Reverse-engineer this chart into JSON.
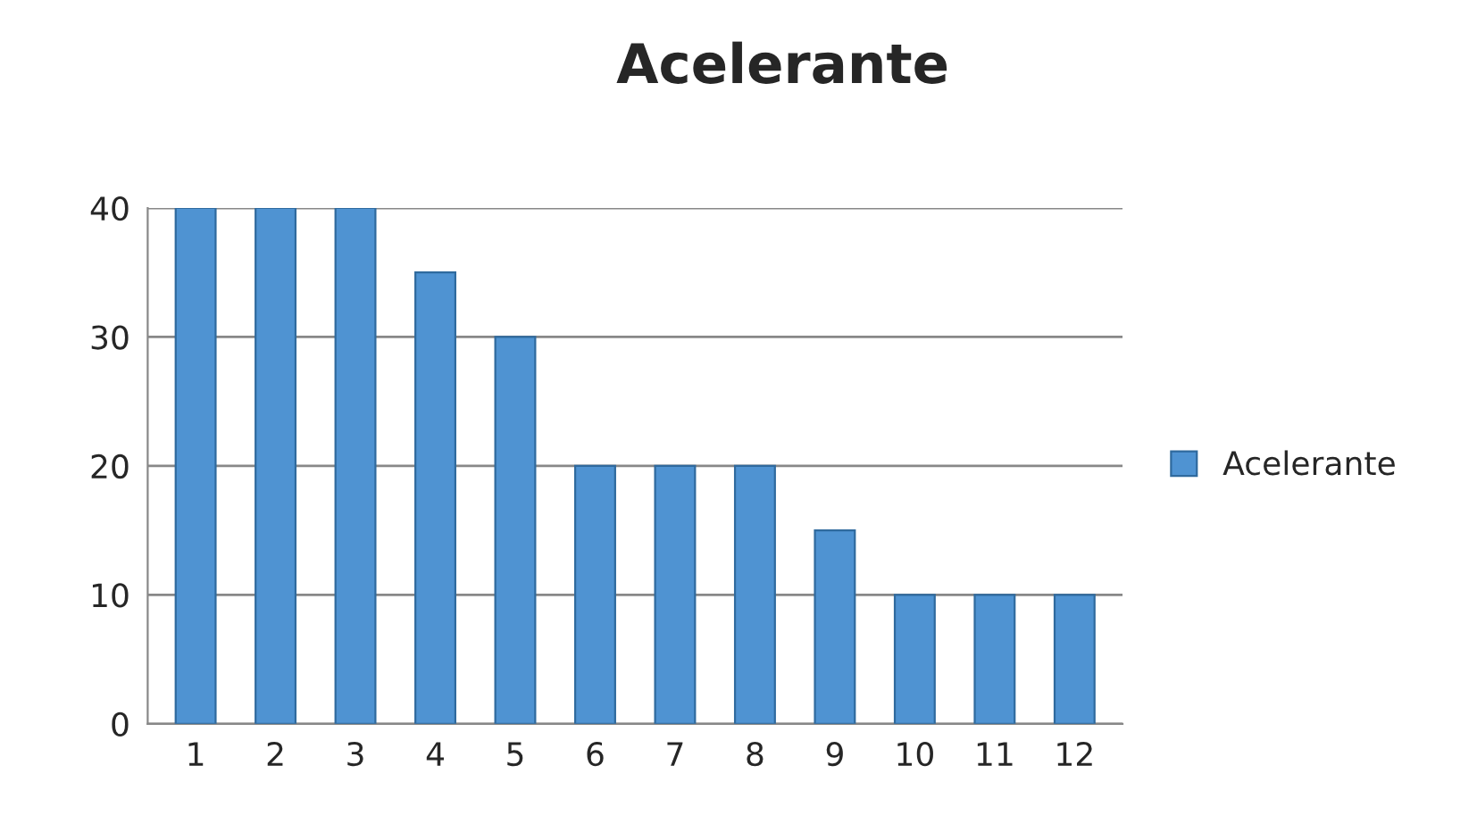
{
  "chart_data": {
    "type": "bar",
    "title": "Acelerante",
    "categories": [
      "1",
      "2",
      "3",
      "4",
      "5",
      "6",
      "7",
      "8",
      "9",
      "10",
      "11",
      "12"
    ],
    "series": [
      {
        "name": "Acelerante",
        "color": "#4f93d2",
        "values": [
          40,
          40,
          40,
          35,
          30,
          20,
          20,
          20,
          15,
          10,
          10,
          10
        ]
      }
    ],
    "ylim": [
      0,
      40
    ],
    "yticks": [
      0,
      10,
      20,
      30,
      40
    ],
    "grid": "y",
    "legend": "right"
  }
}
